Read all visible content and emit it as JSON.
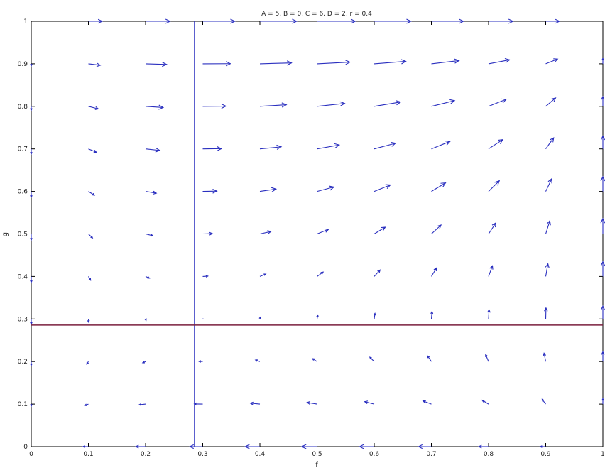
{
  "chart_data": {
    "type": "quiver",
    "title": "A = 5, B = 0, C = 6, D = 2, r = 0.4",
    "xlabel": "f",
    "ylabel": "g",
    "xlim": [
      0,
      1
    ],
    "ylim": [
      0,
      1
    ],
    "x_ticks": [
      "0",
      "0.1",
      "0.2",
      "0.3",
      "0.4",
      "0.5",
      "0.6",
      "0.7",
      "0.8",
      "0.9",
      "1"
    ],
    "y_ticks": [
      "0",
      "0.1",
      "0.2",
      "0.3",
      "0.4",
      "0.5",
      "0.6",
      "0.7",
      "0.8",
      "0.9",
      "1"
    ],
    "grid": false,
    "colors": {
      "arrows": "#2a2fbf",
      "vertical_nullcline": "#2a2fbf",
      "horizontal_nullcline": "#7a1f3d",
      "axes": "#000000"
    },
    "nullclines": [
      {
        "orientation": "vertical",
        "f": 0.2857
      },
      {
        "orientation": "horizontal",
        "g": 0.2857
      }
    ],
    "arrow_grid": {
      "f": [
        0,
        0.1,
        0.2,
        0.3,
        0.4,
        0.5,
        0.6,
        0.7,
        0.8,
        0.9,
        1
      ],
      "g": [
        0,
        0.1,
        0.2,
        0.3,
        0.4,
        0.5,
        0.6,
        0.7,
        0.8,
        0.9,
        1
      ],
      "r": 0.4
    }
  }
}
